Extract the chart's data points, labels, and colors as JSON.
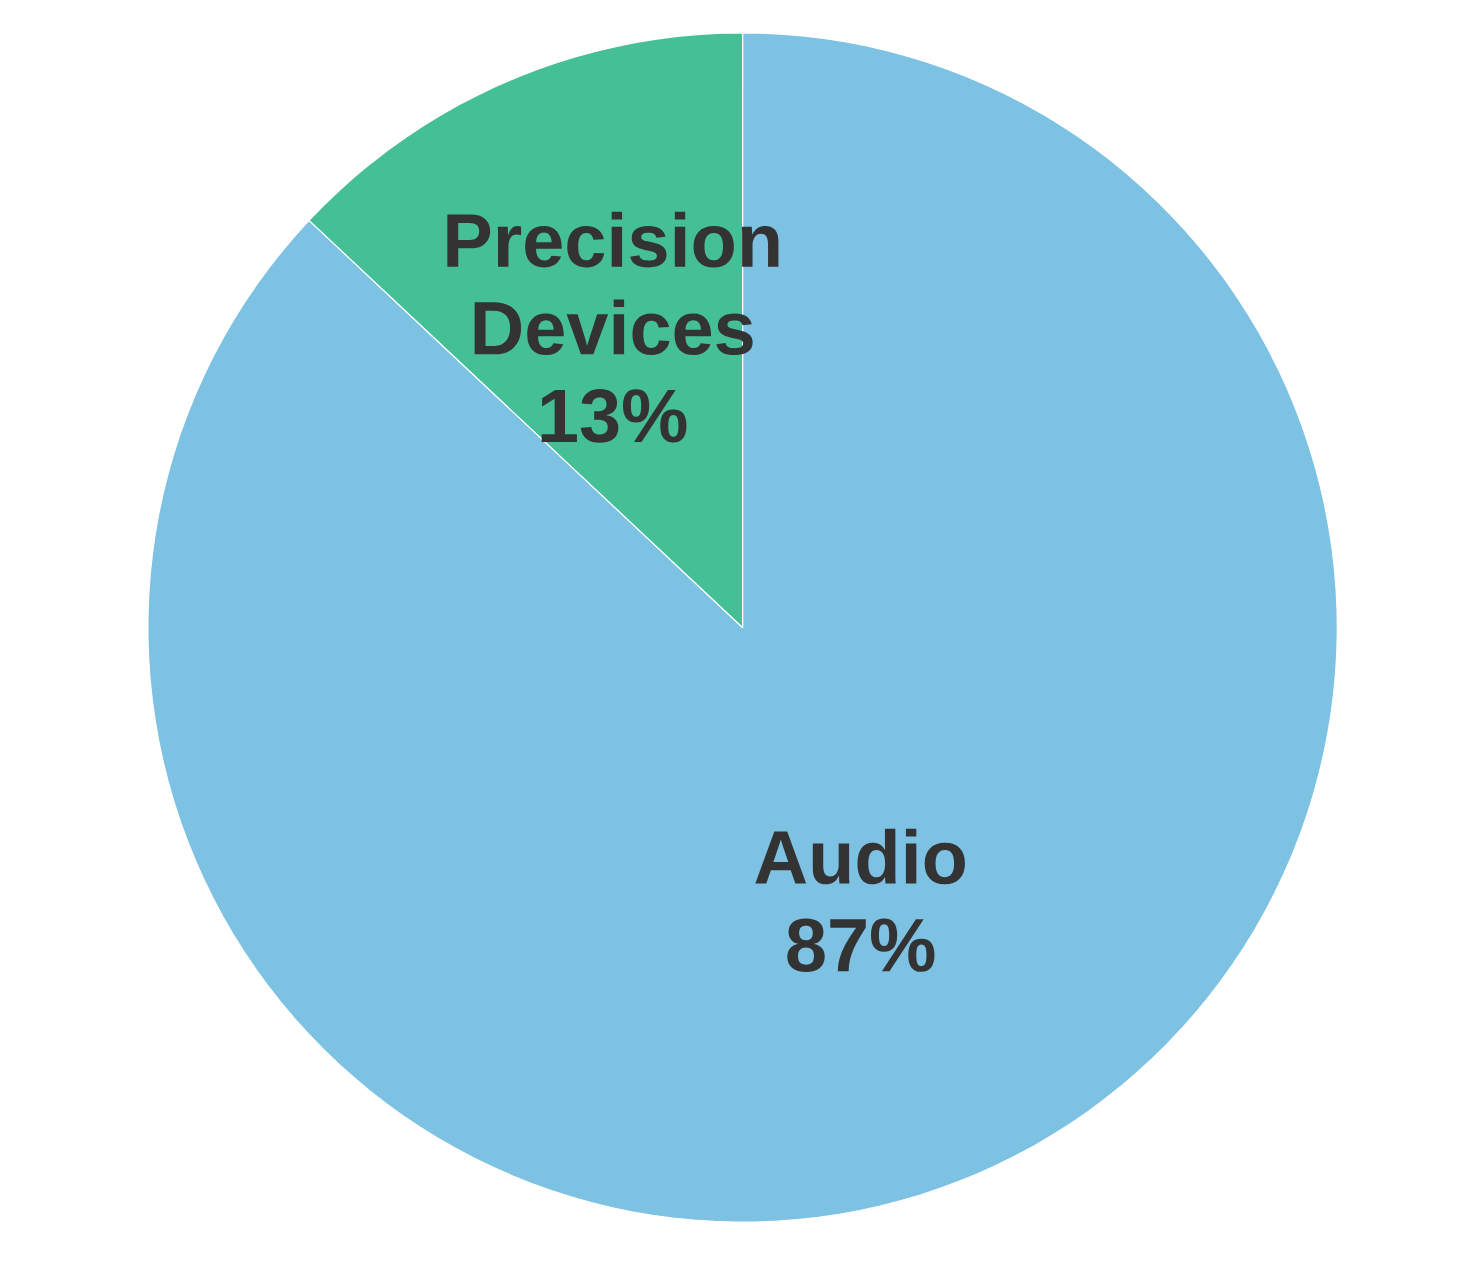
{
  "chart_data": {
    "type": "pie",
    "categories": [
      "Audio",
      "Precision Devices"
    ],
    "values": [
      87,
      13
    ],
    "colors": [
      "#7dc1e3",
      "#45c096"
    ],
    "value_labels": [
      "87%",
      "13%"
    ]
  }
}
